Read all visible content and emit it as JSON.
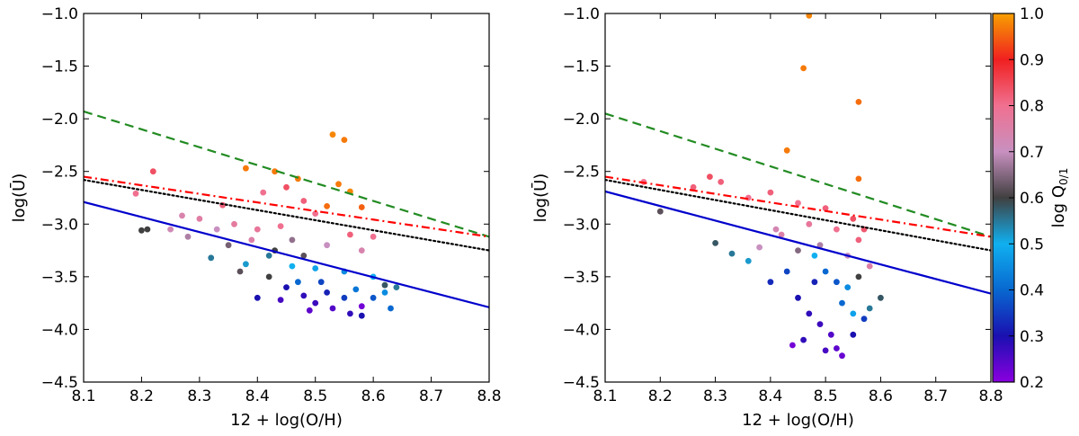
{
  "chart_data": [
    {
      "type": "scatter",
      "panel": "left",
      "xlabel": "12 + log(O/H)",
      "ylabel": "log(Ū)",
      "xlim": [
        8.1,
        8.8
      ],
      "ylim": [
        -4.5,
        -1.0
      ],
      "xticks": [
        "8.1",
        "8.2",
        "8.3",
        "8.4",
        "8.5",
        "8.6",
        "8.7",
        "8.8"
      ],
      "yticks": [
        "-4.5",
        "-4.0",
        "-3.5",
        "-3.0",
        "-2.5",
        "-2.0",
        "-1.5",
        "-1.0"
      ],
      "lines": [
        {
          "name": "green-dashed",
          "color": "#228b22",
          "style": "dashed",
          "x": [
            8.1,
            8.8
          ],
          "y": [
            -1.93,
            -3.12
          ]
        },
        {
          "name": "red-dashdot",
          "color": "#ff0000",
          "style": "dashdot",
          "x": [
            8.1,
            8.8
          ],
          "y": [
            -2.55,
            -3.12
          ]
        },
        {
          "name": "black-dotted",
          "color": "#000000",
          "style": "dotted",
          "x": [
            8.1,
            8.8
          ],
          "y": [
            -2.58,
            -3.25
          ]
        },
        {
          "name": "blue-solid",
          "color": "#0000cc",
          "style": "solid",
          "x": [
            8.1,
            8.8
          ],
          "y": [
            -2.79,
            -3.79
          ]
        }
      ],
      "points": [
        [
          8.19,
          -2.71,
          0.8
        ],
        [
          8.22,
          -2.5,
          0.84
        ],
        [
          8.21,
          -3.05,
          0.6
        ],
        [
          8.2,
          -3.06,
          0.6
        ],
        [
          8.53,
          -2.15,
          0.98
        ],
        [
          8.55,
          -2.2,
          0.97
        ],
        [
          8.43,
          -2.5,
          0.97
        ],
        [
          8.47,
          -2.57,
          0.97
        ],
        [
          8.54,
          -2.62,
          0.97
        ],
        [
          8.56,
          -2.69,
          0.98
        ],
        [
          8.38,
          -2.47,
          0.97
        ],
        [
          8.52,
          -2.83,
          0.96
        ],
        [
          8.58,
          -2.84,
          0.95
        ],
        [
          8.41,
          -2.7,
          0.8
        ],
        [
          8.3,
          -2.95,
          0.76
        ],
        [
          8.34,
          -2.82,
          0.82
        ],
        [
          8.45,
          -2.65,
          0.84
        ],
        [
          8.48,
          -2.78,
          0.82
        ],
        [
          8.27,
          -2.92,
          0.74
        ],
        [
          8.25,
          -3.05,
          0.72
        ],
        [
          8.28,
          -3.12,
          0.68
        ],
        [
          8.35,
          -3.2,
          0.64
        ],
        [
          8.4,
          -3.05,
          0.78
        ],
        [
          8.44,
          -3.02,
          0.8
        ],
        [
          8.5,
          -2.9,
          0.8
        ],
        [
          8.56,
          -3.1,
          0.82
        ],
        [
          8.6,
          -3.12,
          0.8
        ],
        [
          8.32,
          -3.32,
          0.55
        ],
        [
          8.38,
          -3.38,
          0.52
        ],
        [
          8.42,
          -3.3,
          0.55
        ],
        [
          8.46,
          -3.4,
          0.5
        ],
        [
          8.5,
          -3.42,
          0.48
        ],
        [
          8.55,
          -3.45,
          0.45
        ],
        [
          8.6,
          -3.5,
          0.5
        ],
        [
          8.62,
          -3.58,
          0.58
        ],
        [
          8.45,
          -3.6,
          0.3
        ],
        [
          8.48,
          -3.68,
          0.28
        ],
        [
          8.5,
          -3.75,
          0.27
        ],
        [
          8.52,
          -3.65,
          0.32
        ],
        [
          8.55,
          -3.7,
          0.35
        ],
        [
          8.57,
          -3.62,
          0.42
        ],
        [
          8.53,
          -3.8,
          0.25
        ],
        [
          8.56,
          -3.85,
          0.28
        ],
        [
          8.49,
          -3.82,
          0.24
        ],
        [
          8.58,
          -3.87,
          0.3
        ],
        [
          8.6,
          -3.7,
          0.38
        ],
        [
          8.62,
          -3.65,
          0.45
        ],
        [
          8.64,
          -3.6,
          0.55
        ],
        [
          8.42,
          -3.5,
          0.6
        ],
        [
          8.37,
          -3.45,
          0.62
        ],
        [
          8.4,
          -3.7,
          0.3
        ],
        [
          8.44,
          -3.72,
          0.26
        ],
        [
          8.47,
          -3.55,
          0.4
        ],
        [
          8.51,
          -3.55,
          0.36
        ],
        [
          8.58,
          -3.78,
          0.22
        ],
        [
          8.63,
          -3.8,
          0.4
        ],
        [
          8.36,
          -3.0,
          0.77
        ],
        [
          8.46,
          -3.15,
          0.66
        ],
        [
          8.52,
          -3.2,
          0.7
        ],
        [
          8.58,
          -3.25,
          0.74
        ],
        [
          8.33,
          -3.05,
          0.7
        ],
        [
          8.39,
          -3.15,
          0.75
        ],
        [
          8.43,
          -3.25,
          0.6
        ],
        [
          8.48,
          -3.3,
          0.62
        ]
      ]
    },
    {
      "type": "scatter",
      "panel": "right",
      "xlabel": "12 + log(O/H)",
      "ylabel": "log(Ū)",
      "xlim": [
        8.1,
        8.8
      ],
      "ylim": [
        -4.5,
        -1.0
      ],
      "xticks": [
        "8.1",
        "8.2",
        "8.3",
        "8.4",
        "8.5",
        "8.6",
        "8.7",
        "8.8"
      ],
      "yticks": [
        "-4.5",
        "-4.0",
        "-3.5",
        "-3.0",
        "-2.5",
        "-2.0",
        "-1.5",
        "-1.0"
      ],
      "lines": [
        {
          "name": "green-dashed",
          "color": "#228b22",
          "style": "dashed",
          "x": [
            8.1,
            8.8
          ],
          "y": [
            -1.95,
            -3.12
          ]
        },
        {
          "name": "red-dashdot",
          "color": "#ff0000",
          "style": "dashdot",
          "x": [
            8.1,
            8.8
          ],
          "y": [
            -2.55,
            -3.12
          ]
        },
        {
          "name": "black-dotted",
          "color": "#000000",
          "style": "dotted",
          "x": [
            8.1,
            8.8
          ],
          "y": [
            -2.58,
            -3.25
          ]
        },
        {
          "name": "blue-solid",
          "color": "#0000cc",
          "style": "solid",
          "x": [
            8.1,
            8.8
          ],
          "y": [
            -2.69,
            -3.66
          ]
        }
      ],
      "points": [
        [
          8.47,
          -1.02,
          0.98
        ],
        [
          8.46,
          -1.52,
          0.97
        ],
        [
          8.56,
          -1.84,
          0.96
        ],
        [
          8.43,
          -2.3,
          0.97
        ],
        [
          8.56,
          -2.57,
          0.96
        ],
        [
          8.2,
          -2.88,
          0.62
        ],
        [
          8.17,
          -2.6,
          0.8
        ],
        [
          8.26,
          -2.65,
          0.82
        ],
        [
          8.29,
          -2.55,
          0.84
        ],
        [
          8.31,
          -2.6,
          0.82
        ],
        [
          8.36,
          -2.75,
          0.8
        ],
        [
          8.4,
          -2.7,
          0.82
        ],
        [
          8.45,
          -2.8,
          0.8
        ],
        [
          8.5,
          -2.85,
          0.82
        ],
        [
          8.55,
          -2.95,
          0.84
        ],
        [
          8.57,
          -3.05,
          0.83
        ],
        [
          8.3,
          -3.18,
          0.58
        ],
        [
          8.33,
          -3.28,
          0.55
        ],
        [
          8.36,
          -3.35,
          0.52
        ],
        [
          8.38,
          -3.22,
          0.7
        ],
        [
          8.42,
          -3.1,
          0.75
        ],
        [
          8.45,
          -3.25,
          0.65
        ],
        [
          8.48,
          -3.3,
          0.5
        ],
        [
          8.5,
          -3.45,
          0.4
        ],
        [
          8.52,
          -3.55,
          0.38
        ],
        [
          8.54,
          -3.6,
          0.45
        ],
        [
          8.56,
          -3.5,
          0.6
        ],
        [
          8.58,
          -3.4,
          0.75
        ],
        [
          8.6,
          -3.7,
          0.58
        ],
        [
          8.45,
          -3.7,
          0.3
        ],
        [
          8.47,
          -3.85,
          0.28
        ],
        [
          8.49,
          -3.95,
          0.27
        ],
        [
          8.51,
          -4.05,
          0.25
        ],
        [
          8.52,
          -4.18,
          0.24
        ],
        [
          8.53,
          -4.25,
          0.23
        ],
        [
          8.5,
          -4.2,
          0.26
        ],
        [
          8.46,
          -4.1,
          0.28
        ],
        [
          8.44,
          -4.15,
          0.22
        ],
        [
          8.55,
          -4.05,
          0.3
        ],
        [
          8.57,
          -3.9,
          0.35
        ],
        [
          8.48,
          -3.55,
          0.32
        ],
        [
          8.43,
          -3.45,
          0.36
        ],
        [
          8.4,
          -3.55,
          0.33
        ],
        [
          8.53,
          -3.75,
          0.4
        ],
        [
          8.55,
          -3.85,
          0.48
        ],
        [
          8.58,
          -3.8,
          0.55
        ],
        [
          8.41,
          -3.05,
          0.73
        ],
        [
          8.47,
          -3.0,
          0.78
        ],
        [
          8.52,
          -3.05,
          0.8
        ],
        [
          8.56,
          -3.15,
          0.82
        ],
        [
          8.54,
          -3.3,
          0.7
        ],
        [
          8.49,
          -3.2,
          0.68
        ]
      ]
    }
  ],
  "colorbar": {
    "label": "log Q0/1",
    "label_main": "log Q",
    "label_sub": "0/1",
    "range": [
      0.2,
      1.0
    ],
    "ticks": [
      "0.2",
      "0.3",
      "0.4",
      "0.5",
      "0.6",
      "0.7",
      "0.8",
      "0.9",
      "1.0"
    ],
    "stops": [
      {
        "v": 0.2,
        "c": "#8a00e0"
      },
      {
        "v": 0.3,
        "c": "#1a10b0"
      },
      {
        "v": 0.4,
        "c": "#0868d0"
      },
      {
        "v": 0.5,
        "c": "#10b0f0"
      },
      {
        "v": 0.6,
        "c": "#404040"
      },
      {
        "v": 0.7,
        "c": "#c890c0"
      },
      {
        "v": 0.8,
        "c": "#f07090"
      },
      {
        "v": 0.9,
        "c": "#f02020"
      },
      {
        "v": 1.0,
        "c": "#f8a000"
      }
    ]
  }
}
